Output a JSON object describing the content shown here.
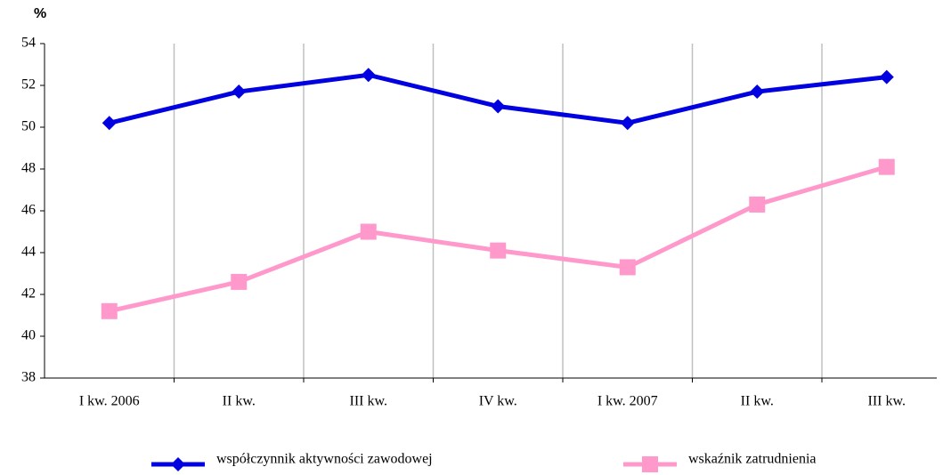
{
  "chart_data": {
    "type": "line",
    "y_label": "%",
    "categories": [
      "I kw.  2006",
      "II kw.",
      "III kw.",
      "IV kw.",
      "I kw. 2007",
      "II kw.",
      "III kw."
    ],
    "series": [
      {
        "name": "współczynnik aktywności zawodowej",
        "color": "#0000e0",
        "marker": "diamond",
        "values": [
          50.2,
          51.7,
          52.5,
          51.0,
          50.2,
          51.7,
          52.4
        ]
      },
      {
        "name": "wskaźnik zatrudnienia",
        "color": "#ff99cc",
        "marker": "square",
        "values": [
          41.2,
          42.6,
          45.0,
          44.1,
          43.3,
          46.3,
          48.1
        ]
      }
    ],
    "ylim": [
      38,
      54
    ],
    "yticks": [
      38,
      40,
      42,
      44,
      46,
      48,
      50,
      52,
      54
    ],
    "grid": true,
    "legend": "bottom"
  }
}
